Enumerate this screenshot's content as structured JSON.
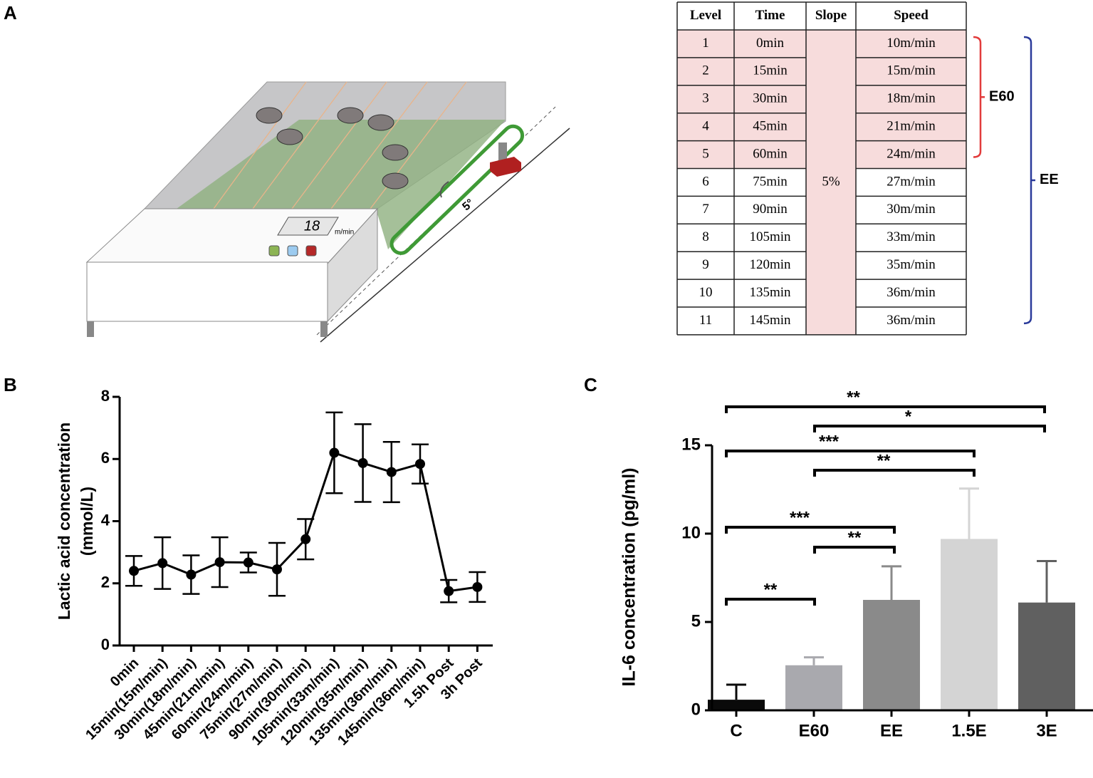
{
  "panels": [
    "A",
    "B",
    "C"
  ],
  "diagram": {
    "display": "18",
    "unit": "m/min",
    "angle": "5°"
  },
  "table": {
    "header": [
      "Level",
      "Time",
      "Slope",
      "Speed"
    ],
    "rows": [
      [
        "1",
        "0min",
        "10m/min"
      ],
      [
        "2",
        "15min",
        "15m/min"
      ],
      [
        "3",
        "30min",
        "18m/min"
      ],
      [
        "4",
        "45min",
        "21m/min"
      ],
      [
        "5",
        "60min",
        "24m/min"
      ],
      [
        "6",
        "75min",
        "27m/min"
      ],
      [
        "7",
        "90min",
        "30m/min"
      ],
      [
        "8",
        "105min",
        "33m/min"
      ],
      [
        "9",
        "120min",
        "35m/min"
      ],
      [
        "10",
        "135min",
        "36m/min"
      ],
      [
        "11",
        "145min",
        "36m/min"
      ]
    ],
    "slope": "5%",
    "groups": [
      {
        "label": "E60",
        "first": 0,
        "last": 4,
        "color": "#e23b3b"
      },
      {
        "label": "EE",
        "first": 0,
        "last": 10,
        "color": "#2a3a9a"
      }
    ]
  },
  "chart_data": [
    {
      "type": "line",
      "ylabel": [
        "Lactic acid concentration",
        "(mmol/L)"
      ],
      "categories": [
        "0min",
        "15min(15m/min)",
        "30min(18m/min)",
        "45min(21m/min)",
        "60min(24m/min)",
        "75min(27m/min)",
        "90min(30m/min)",
        "105min(33m/min)",
        "120min(35m/min)",
        "135min(36m/min)",
        "145min(36m/min)",
        "1.5h Post",
        "3h Post"
      ],
      "values": [
        2.4,
        2.65,
        2.28,
        2.68,
        2.67,
        2.45,
        3.42,
        6.2,
        5.87,
        5.58,
        5.84,
        1.75,
        1.88
      ],
      "errors": [
        0.48,
        0.83,
        0.62,
        0.8,
        0.32,
        0.85,
        0.65,
        1.3,
        1.25,
        0.97,
        0.63,
        0.36,
        0.48
      ],
      "color": "#000000",
      "ylim": [
        0,
        8
      ],
      "yticks": [
        0,
        2,
        4,
        6,
        8
      ]
    },
    {
      "type": "bar",
      "ylabel": "IL-6 concentration (pg/ml)",
      "categories": [
        "C",
        "E60",
        "EE",
        "1.5E",
        "3E"
      ],
      "values": [
        0.6,
        2.55,
        6.25,
        9.7,
        6.1
      ],
      "errors": [
        0.85,
        0.45,
        1.9,
        2.85,
        2.35
      ],
      "colors": [
        "#0a0a0a",
        "#a9a9ae",
        "#8a8a8a",
        "#d4d4d4",
        "#606060"
      ],
      "ylim": [
        0,
        15
      ],
      "yticks": [
        0,
        5,
        10,
        15
      ],
      "annotations": [
        {
          "from": 0,
          "to": 4,
          "label": "**"
        },
        {
          "from": 1,
          "to": 4,
          "label": "*"
        },
        {
          "from": 0,
          "to": 3,
          "label": "***"
        },
        {
          "from": 1,
          "to": 3,
          "label": "**"
        },
        {
          "from": 0,
          "to": 2,
          "label": "***"
        },
        {
          "from": 1,
          "to": 2,
          "label": "**"
        },
        {
          "from": 0,
          "to": 1,
          "label": "**"
        }
      ]
    }
  ]
}
